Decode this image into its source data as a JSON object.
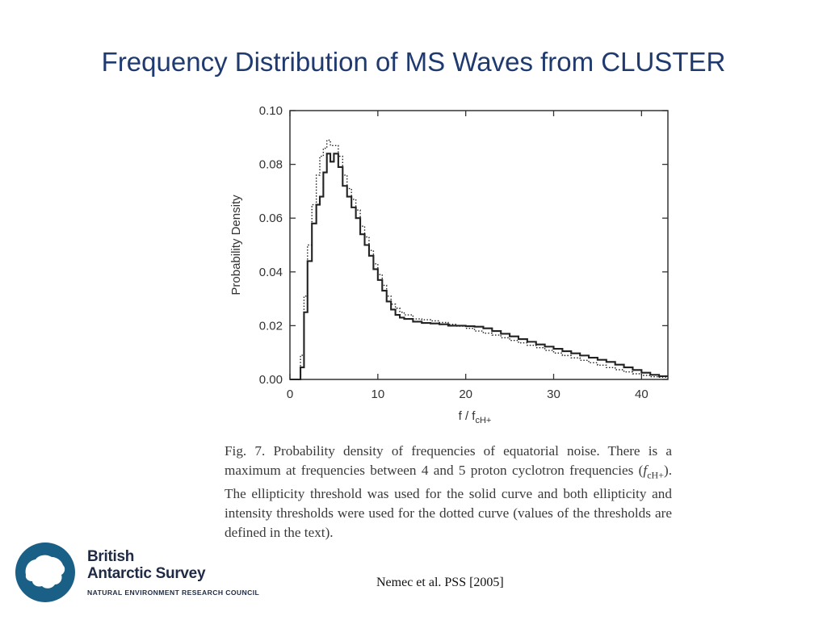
{
  "slide": {
    "title": "Frequency Distribution of MS Waves from CLUSTER",
    "citation": "Nemec et al. PSS [2005]"
  },
  "caption": {
    "before": "Fig. 7.  Probability density of frequencies of equatorial noise. There is a maximum at frequencies between 4 and 5 proton cyclotron frequencies (",
    "symbol": "f",
    "subscript": "cH+",
    "after": "). The ellipticity threshold was used for the solid curve and both ellipticity and intensity thresholds were used for the dotted curve (values of the thresholds are defined in the text)."
  },
  "logo": {
    "line1": "British",
    "line2": "Antarctic Survey",
    "line3": "NATURAL ENVIRONMENT RESEARCH COUNCIL"
  },
  "colors": {
    "title": "#1f3a6e",
    "logo_circle": "#1a5f86",
    "logo_text": "#1f2a44"
  },
  "chart_data": {
    "type": "line",
    "title": "",
    "xlabel": "f / f",
    "xlabel_sub": "cH+",
    "ylabel": "Probability Density",
    "xlim": [
      0,
      43
    ],
    "ylim": [
      0,
      0.1
    ],
    "xticks": [
      0,
      10,
      20,
      30,
      40
    ],
    "xtick_labels": [
      "0",
      "10",
      "20",
      "30",
      "40"
    ],
    "yticks": [
      0,
      0.02,
      0.04,
      0.06,
      0.08,
      0.1
    ],
    "ytick_labels": [
      "0.00",
      "0.02",
      "0.04",
      "0.06",
      "0.08",
      "0.10"
    ],
    "series": [
      {
        "name": "ellipticity threshold (solid)",
        "style": "solid",
        "x": [
          0,
          1,
          1.2,
          1.6,
          2,
          2.5,
          3,
          3.4,
          3.8,
          4.2,
          4.6,
          5,
          5.5,
          6,
          6.5,
          7,
          7.5,
          8,
          8.5,
          9,
          9.5,
          10,
          10.5,
          11,
          11.5,
          12,
          12.5,
          13,
          14,
          15,
          16,
          17,
          18,
          19,
          20,
          21,
          22,
          23,
          24,
          25,
          26,
          27,
          28,
          29,
          30,
          31,
          32,
          33,
          34,
          35,
          36,
          37,
          38,
          39,
          40,
          41,
          42,
          43
        ],
        "y": [
          0,
          0,
          0.0045,
          0.025,
          0.044,
          0.058,
          0.065,
          0.068,
          0.077,
          0.084,
          0.081,
          0.084,
          0.079,
          0.072,
          0.068,
          0.064,
          0.06,
          0.054,
          0.05,
          0.046,
          0.041,
          0.037,
          0.033,
          0.029,
          0.026,
          0.024,
          0.023,
          0.0225,
          0.0215,
          0.021,
          0.0208,
          0.0205,
          0.02,
          0.02,
          0.0198,
          0.0196,
          0.019,
          0.018,
          0.017,
          0.016,
          0.015,
          0.014,
          0.013,
          0.0122,
          0.0114,
          0.0105,
          0.0097,
          0.0089,
          0.0081,
          0.0073,
          0.0065,
          0.0055,
          0.0045,
          0.0035,
          0.0025,
          0.0017,
          0.0012,
          0.0012
        ]
      },
      {
        "name": "ellipticity and intensity thresholds (dotted)",
        "style": "dotted",
        "x": [
          0,
          1,
          1.2,
          1.6,
          2,
          2.5,
          3,
          3.4,
          3.8,
          4.2,
          4.6,
          5,
          5.5,
          6,
          6.5,
          7,
          7.5,
          8,
          8.5,
          9,
          9.5,
          10,
          10.5,
          11,
          11.5,
          12,
          12.5,
          13,
          14,
          15,
          16,
          17,
          18,
          19,
          20,
          21,
          22,
          23,
          24,
          25,
          26,
          27,
          28,
          29,
          30,
          31,
          32,
          33,
          34,
          35,
          36,
          37,
          38,
          39,
          40,
          41,
          42,
          43
        ],
        "y": [
          0,
          0,
          0.009,
          0.031,
          0.05,
          0.065,
          0.076,
          0.083,
          0.086,
          0.089,
          0.087,
          0.087,
          0.083,
          0.076,
          0.071,
          0.067,
          0.063,
          0.057,
          0.053,
          0.048,
          0.043,
          0.039,
          0.035,
          0.031,
          0.028,
          0.0265,
          0.025,
          0.024,
          0.0225,
          0.0222,
          0.0218,
          0.0212,
          0.0205,
          0.0198,
          0.019,
          0.018,
          0.0172,
          0.0165,
          0.0155,
          0.0145,
          0.0136,
          0.0127,
          0.0118,
          0.0108,
          0.0098,
          0.0089,
          0.008,
          0.0071,
          0.0062,
          0.0053,
          0.0044,
          0.0036,
          0.0028,
          0.0021,
          0.0015,
          0.001,
          0.0008,
          0.0008
        ]
      }
    ]
  }
}
